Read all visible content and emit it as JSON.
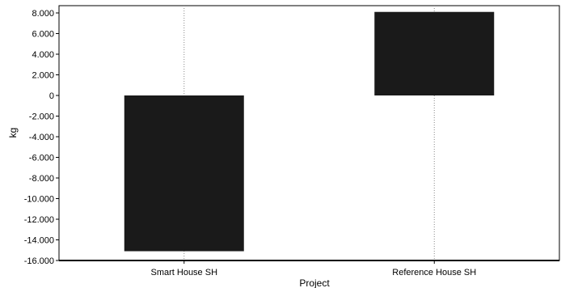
{
  "chart_data": {
    "type": "bar",
    "title": "",
    "xlabel": "Project",
    "ylabel": "kg",
    "categories": [
      "Smart House SH",
      "Reference House SH"
    ],
    "values": [
      -15100,
      8100
    ],
    "ylim": [
      -16000,
      8400
    ],
    "yticks": [
      8000,
      6000,
      4000,
      2000,
      0,
      -2000,
      -4000,
      -6000,
      -8000,
      -10000,
      -12000,
      -14000,
      -16000
    ],
    "ytick_labels": [
      "8.000",
      "6.000",
      "4.000",
      "2.000",
      "0",
      "-2.000",
      "-4.000",
      "-6.000",
      "-8.000",
      "-10.000",
      "-12.000",
      "-14.000",
      "-16.000"
    ],
    "bar_color": "#1a1a1a",
    "grid": "vertical dotted at category centers",
    "legend": "none"
  }
}
